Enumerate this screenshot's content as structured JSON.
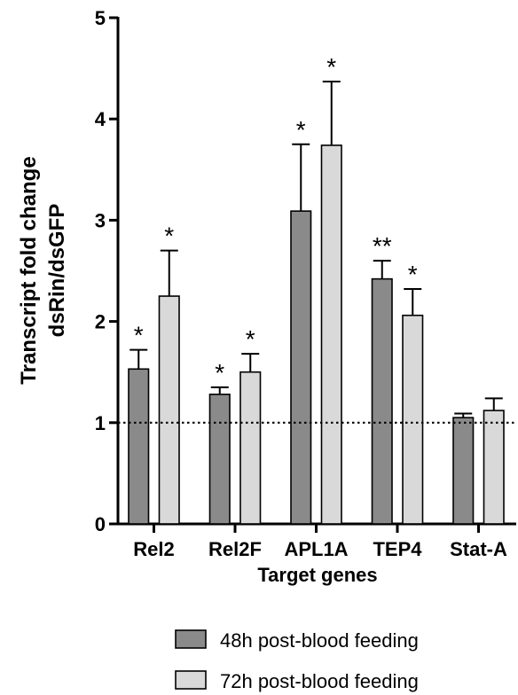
{
  "chart_data": {
    "type": "bar",
    "xlabel": "Target genes",
    "ylabel_lines": [
      "Transcript fold change",
      "dsRin/dsGFP"
    ],
    "ylim": [
      0,
      5
    ],
    "yticks": [
      "0",
      "1",
      "2",
      "3",
      "4",
      "5"
    ],
    "reference_line": 1,
    "grid": false,
    "legend_position": "bottom-center",
    "categories": [
      "Rel2",
      "Rel2F",
      "APL1A",
      "TEP4",
      "Stat-A"
    ],
    "series": [
      {
        "name": "48h post-blood feeding",
        "color": "#8a8a8a",
        "values": [
          1.53,
          1.28,
          3.09,
          2.42,
          1.05
        ],
        "errors": [
          0.19,
          0.07,
          0.66,
          0.18,
          0.04
        ],
        "significance": [
          "*",
          "*",
          "*",
          "**",
          ""
        ]
      },
      {
        "name": "72h post-blood feeding",
        "color": "#d9d9d9",
        "values": [
          2.25,
          1.5,
          3.74,
          2.06,
          1.12
        ],
        "errors": [
          0.45,
          0.18,
          0.63,
          0.26,
          0.12
        ],
        "significance": [
          "*",
          "*",
          "*",
          "*",
          ""
        ]
      }
    ]
  }
}
